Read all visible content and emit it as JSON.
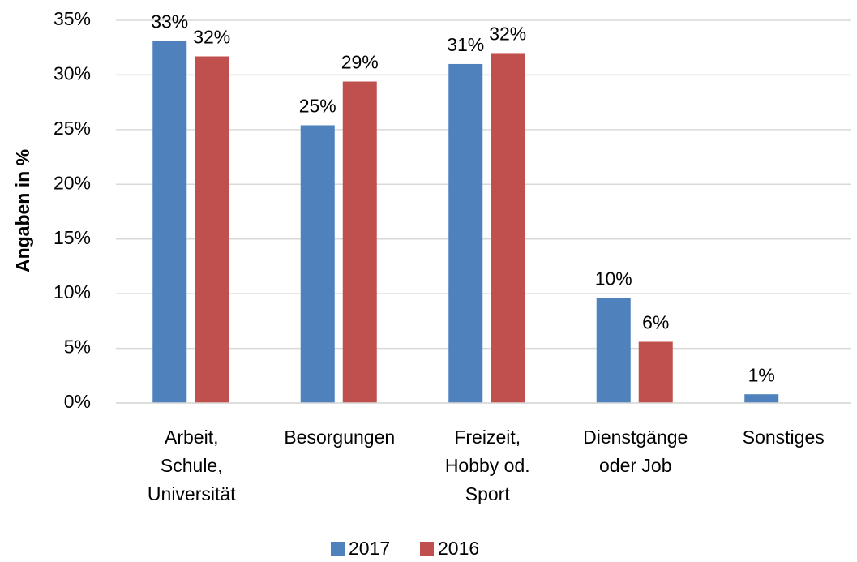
{
  "chart_data": {
    "type": "bar",
    "y_axis_label": "Angaben in %",
    "categories": [
      "Arbeit,\nSchule,\nUniversität",
      "Besorgungen",
      "Freizeit,\nHobby od.\nSport",
      "Dienstgänge\noder Job",
      "Sonstiges"
    ],
    "series": [
      {
        "name": "2017",
        "color": "#4f81bd",
        "values": [
          33.1,
          25.4,
          31.0,
          9.6,
          0.8
        ],
        "value_labels": [
          "33%",
          "25%",
          "31%",
          "10%",
          "1%"
        ]
      },
      {
        "name": "2016",
        "color": "#c0504d",
        "values": [
          31.7,
          29.4,
          32.0,
          5.6,
          null
        ],
        "value_labels": [
          "32%",
          "29%",
          "32%",
          "6%",
          null
        ]
      }
    ],
    "ylim": [
      0,
      35
    ],
    "yticks": [
      {
        "value": 0,
        "label": "0%"
      },
      {
        "value": 5,
        "label": "5%"
      },
      {
        "value": 10,
        "label": "10%"
      },
      {
        "value": 15,
        "label": "15%"
      },
      {
        "value": 20,
        "label": "20%"
      },
      {
        "value": 25,
        "label": "25%"
      },
      {
        "value": 30,
        "label": "30%"
      },
      {
        "value": 35,
        "label": "35%"
      }
    ],
    "grid": true,
    "legend": "bottom"
  }
}
